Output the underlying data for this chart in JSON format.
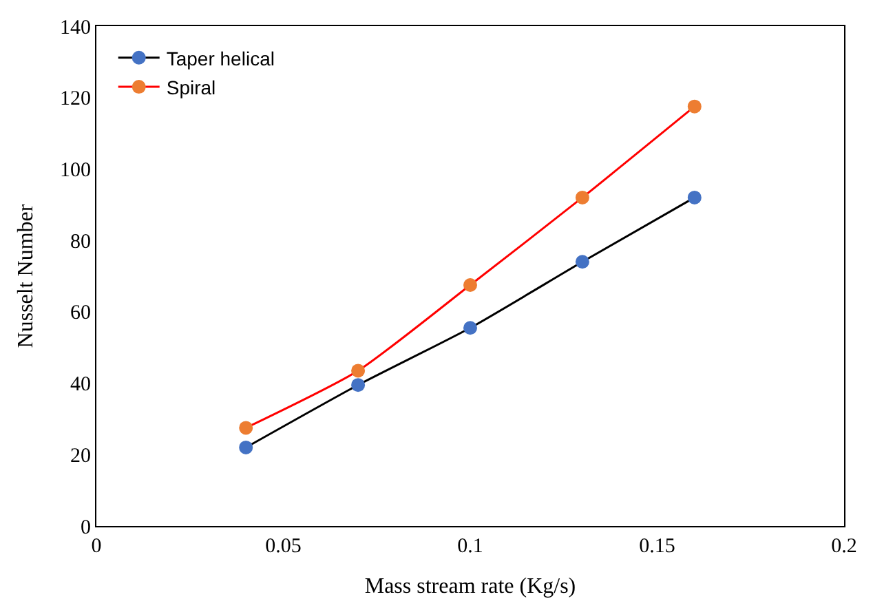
{
  "chart_data": {
    "type": "line",
    "xlabel": "Mass stream rate (Kg/s)",
    "ylabel": "Nusselt Number",
    "x": [
      0.04,
      0.07,
      0.1,
      0.13,
      0.16
    ],
    "series": [
      {
        "name": "Taper helical",
        "color": "#000000",
        "colors": [
          "#4472c4",
          "#4472c4",
          "#4472c4",
          "#4472c4",
          "#4472c4"
        ],
        "values": [
          22,
          39.5,
          55.5,
          74,
          92
        ]
      },
      {
        "name": "Spiral",
        "color": "#ff0000",
        "colors": [
          "#ed7d31",
          "#ed7d31",
          "#ed7d31",
          "#ed7d31",
          "#ed7d31"
        ],
        "values": [
          27.5,
          43.5,
          67.5,
          92,
          117.5
        ]
      }
    ],
    "xlim": [
      0,
      0.2
    ],
    "xticks": [
      0,
      0.05,
      0.1,
      0.15,
      0.2
    ],
    "ylim": [
      0,
      140
    ],
    "yticks": [
      0,
      20,
      40,
      60,
      80,
      100,
      120,
      140
    ],
    "legend": "top left",
    "marker": "circle",
    "line_style": "solid"
  }
}
